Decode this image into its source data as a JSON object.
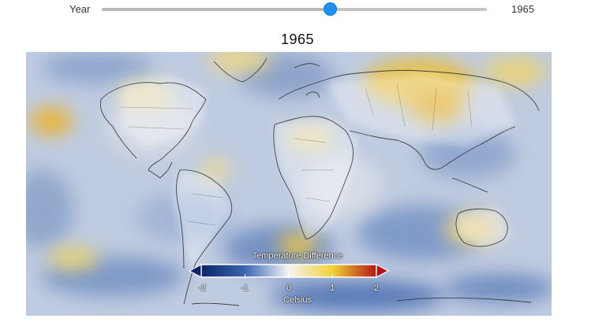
{
  "slider": {
    "label": "Year",
    "value_label": "1965",
    "position_fraction": 0.593
  },
  "map": {
    "title": "1965",
    "colorbar": {
      "title": "Temperature Difference",
      "units": "Celsius",
      "ticks": [
        "-2",
        "-1",
        "0",
        "1",
        "2"
      ],
      "colors": [
        "#0a2466",
        "#3a67b0",
        "#f4f4f6",
        "#f2d235",
        "#b31616"
      ]
    }
  }
}
